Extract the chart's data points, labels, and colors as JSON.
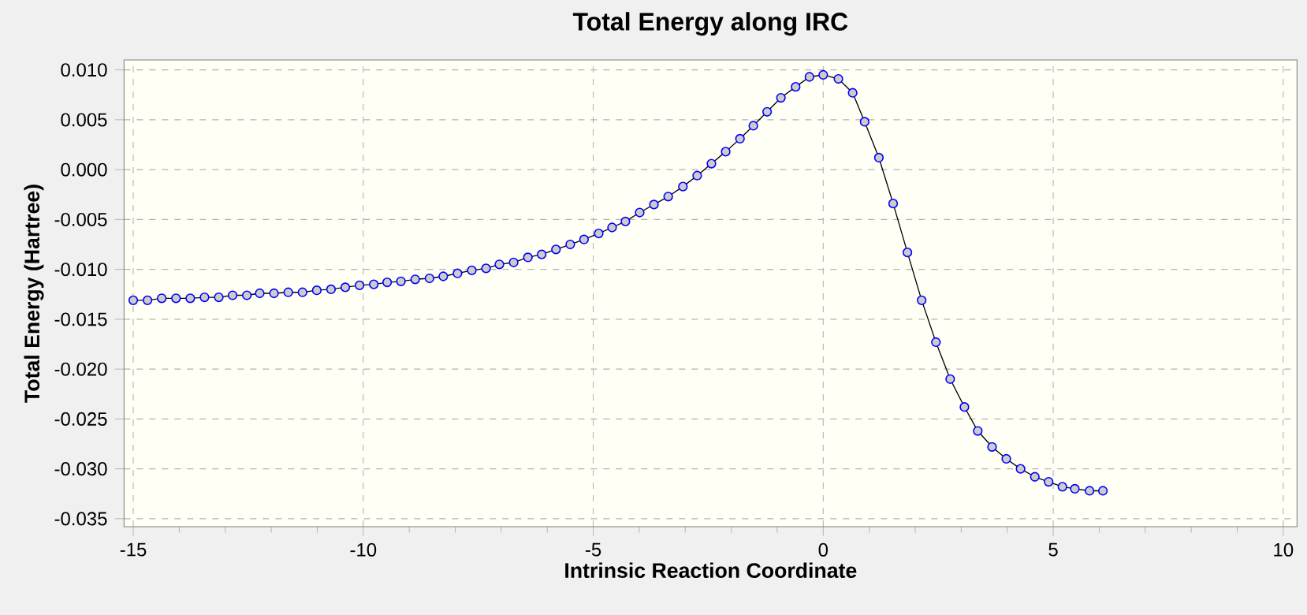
{
  "chart_data": {
    "type": "line",
    "title": "Total Energy along IRC",
    "xlabel": "Intrinsic Reaction Coordinate",
    "ylabel": "Total Energy (Hartree)",
    "x": [
      -15,
      -14.69,
      -14.38,
      -14.07,
      -13.76,
      -13.45,
      -13.14,
      -12.84,
      -12.53,
      -12.25,
      -11.94,
      -11.63,
      -11.32,
      -11.01,
      -10.7,
      -10.39,
      -10.08,
      -9.77,
      -9.48,
      -9.18,
      -8.87,
      -8.56,
      -8.26,
      -7.95,
      -7.64,
      -7.33,
      -7.04,
      -6.73,
      -6.42,
      -6.12,
      -5.81,
      -5.5,
      -5.2,
      -4.88,
      -4.59,
      -4.3,
      -3.99,
      -3.68,
      -3.37,
      -3.05,
      -2.74,
      -2.43,
      -2.12,
      -1.81,
      -1.52,
      -1.22,
      -0.92,
      -0.6,
      -0.3,
      0,
      0.33,
      0.64,
      0.9,
      1.21,
      1.52,
      1.83,
      2.14,
      2.45,
      2.76,
      3.07,
      3.36,
      3.67,
      3.98,
      4.29,
      4.6,
      4.9,
      5.2,
      5.47,
      5.79,
      6.08
    ],
    "series": [
      {
        "color": "#0000ff",
        "values": [
          -0.0131,
          -0.0131,
          -0.0129,
          -0.0129,
          -0.0129,
          -0.0128,
          -0.0128,
          -0.0126,
          -0.0126,
          -0.0124,
          -0.0124,
          -0.0123,
          -0.0123,
          -0.0121,
          -0.012,
          -0.0118,
          -0.0116,
          -0.0115,
          -0.0113,
          -0.0112,
          -0.011,
          -0.0109,
          -0.0107,
          -0.0104,
          -0.0101,
          -0.0099,
          -0.0095,
          -0.0093,
          -0.0088,
          -0.0085,
          -0.008,
          -0.0075,
          -0.007,
          -0.0064,
          -0.0058,
          -0.0052,
          -0.0043,
          -0.0035,
          -0.0027,
          -0.0017,
          -0.0006,
          0.0006,
          0.0018,
          0.0031,
          0.0044,
          0.0058,
          0.0072,
          0.0083,
          0.0093,
          0.0095,
          0.0091,
          0.0077,
          0.0048,
          0.0012,
          -0.0034,
          -0.0083,
          -0.0131,
          -0.0173,
          -0.021,
          -0.0238,
          -0.0262,
          -0.0278,
          -0.029,
          -0.03,
          -0.0308,
          -0.0313,
          -0.0318,
          -0.032,
          -0.0322,
          -0.0322
        ]
      }
    ],
    "xlim": [
      -15.2,
      10.3
    ],
    "ylim": [
      -0.0358,
      0.011
    ],
    "xticks": [
      -15,
      -10,
      -5,
      0,
      5,
      10
    ],
    "yticks": [
      {
        "value": 0.01,
        "label": "0.010"
      },
      {
        "value": 0.005,
        "label": "0.005"
      },
      {
        "value": 0,
        "label": "0.000"
      },
      {
        "value": -0.005,
        "label": "-0.005"
      },
      {
        "value": -0.01,
        "label": "-0.010"
      },
      {
        "value": -0.015,
        "label": "-0.015"
      },
      {
        "value": -0.02,
        "label": "-0.020"
      },
      {
        "value": -0.025,
        "label": "-0.025"
      },
      {
        "value": -0.03,
        "label": "-0.030"
      },
      {
        "value": -0.035,
        "label": "-0.035"
      }
    ],
    "grid": true,
    "marker": "circle",
    "line_style": "solid"
  }
}
